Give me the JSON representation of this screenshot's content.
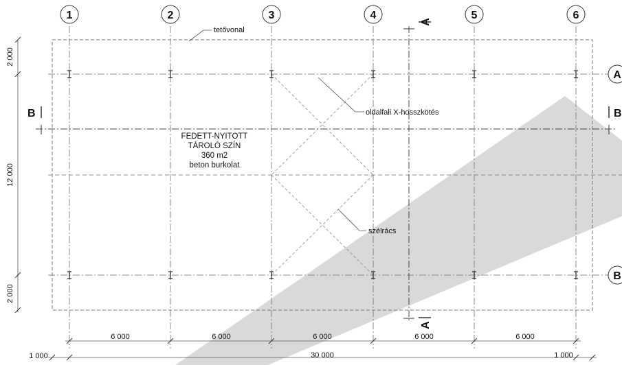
{
  "grid": {
    "columns": [
      "1",
      "2",
      "3",
      "4",
      "5",
      "6"
    ],
    "rows_right": [
      "A",
      "B"
    ]
  },
  "section_marks": {
    "a_top": "A",
    "a_bottom": "A",
    "b_left": "B",
    "b_right": "B"
  },
  "labels": {
    "roof_line": "tetővonal",
    "bracing": "oldalfali X-hosszkötés",
    "wind_truss": "szélrács",
    "room": [
      "FEDETT-NYITOTT",
      "TÁROLÓ SZÍN",
      "360 m2",
      "beton burkolat"
    ]
  },
  "dimensions": {
    "left": [
      "2 000",
      "12 000",
      "2 000"
    ],
    "bays": [
      "6 000",
      "6 000",
      "6 000",
      "6 000",
      "6 000"
    ],
    "overall": "30 000",
    "left_overhang": "1 000",
    "right_overhang": "1 000"
  },
  "colors": {
    "line": "#333333",
    "shadow": "#d9d9d9"
  }
}
